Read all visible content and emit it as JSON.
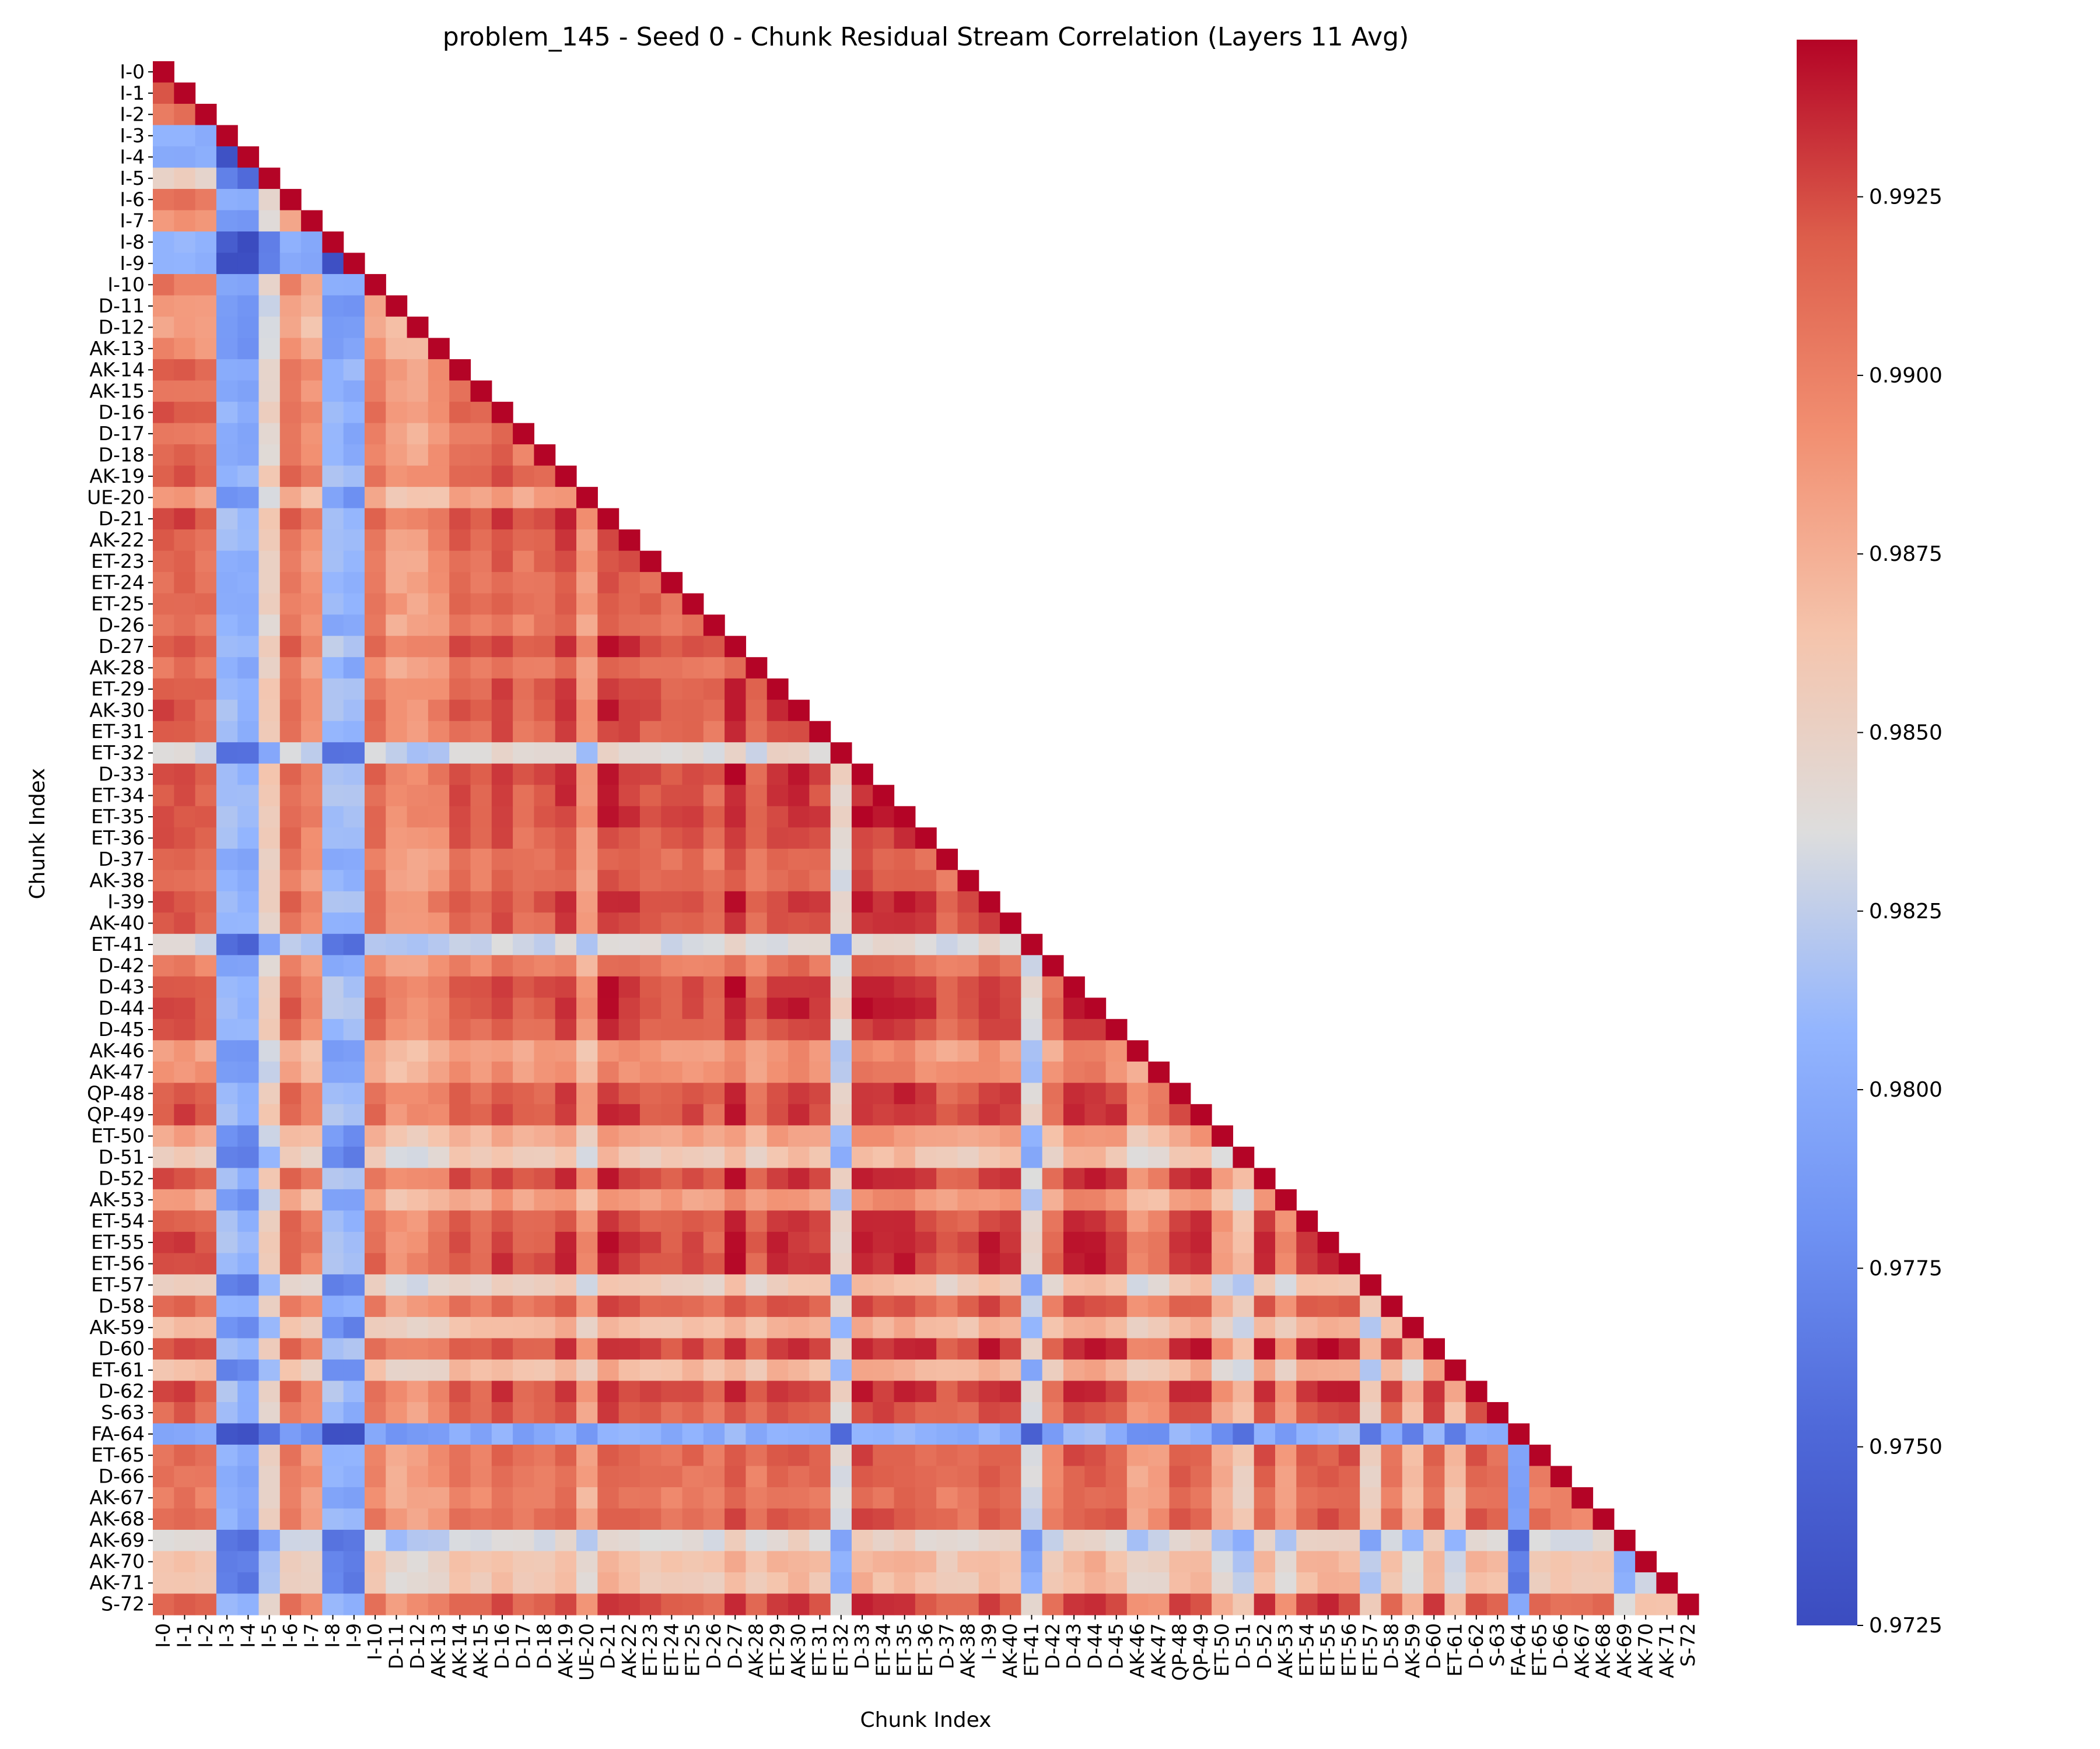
{
  "chart_data": {
    "type": "heatmap",
    "title": "problem_145 - Seed 0 - Chunk Residual Stream Correlation (Layers 11 Avg)",
    "xlabel": "Chunk Index",
    "ylabel": "Chunk Index",
    "labels": [
      "I-0",
      "I-1",
      "I-2",
      "I-3",
      "I-4",
      "I-5",
      "I-6",
      "I-7",
      "I-8",
      "I-9",
      "I-10",
      "D-11",
      "D-12",
      "AK-13",
      "AK-14",
      "AK-15",
      "D-16",
      "D-17",
      "D-18",
      "AK-19",
      "UE-20",
      "D-21",
      "AK-22",
      "ET-23",
      "ET-24",
      "ET-25",
      "D-26",
      "D-27",
      "AK-28",
      "ET-29",
      "AK-30",
      "ET-31",
      "ET-32",
      "D-33",
      "ET-34",
      "ET-35",
      "ET-36",
      "D-37",
      "AK-38",
      "I-39",
      "AK-40",
      "ET-41",
      "D-42",
      "D-43",
      "D-44",
      "D-45",
      "AK-46",
      "AK-47",
      "QP-48",
      "QP-49",
      "ET-50",
      "D-51",
      "D-52",
      "AK-53",
      "ET-54",
      "ET-55",
      "ET-56",
      "ET-57",
      "D-58",
      "AK-59",
      "D-60",
      "ET-61",
      "D-62",
      "S-63",
      "FA-64",
      "ET-65",
      "D-66",
      "AK-67",
      "AK-68",
      "AK-69",
      "AK-70",
      "AK-71",
      "S-72"
    ],
    "mask": "lower-triangle",
    "colormap": "coolwarm",
    "vmin": 0.9725,
    "vmax": 0.9947,
    "colorbar_ticks": [
      "0.9725",
      "0.9750",
      "0.9775",
      "0.9800",
      "0.9825",
      "0.9850",
      "0.9875",
      "0.9900",
      "0.9925"
    ],
    "row_profile": [
      0.9915,
      0.9918,
      0.9905,
      0.9735,
      0.9725,
      0.9805,
      0.99,
      0.9875,
      0.9738,
      0.9733,
      0.9897,
      0.9862,
      0.9862,
      0.9878,
      0.9915,
      0.99,
      0.9925,
      0.99,
      0.9908,
      0.9928,
      0.9862,
      0.994,
      0.9925,
      0.9915,
      0.991,
      0.9915,
      0.99,
      0.9943,
      0.99,
      0.9928,
      0.9935,
      0.992,
      0.979,
      0.9943,
      0.9935,
      0.9938,
      0.9925,
      0.9905,
      0.991,
      0.9935,
      0.9925,
      0.978,
      0.9895,
      0.994,
      0.994,
      0.9925,
      0.9865,
      0.9875,
      0.993,
      0.9935,
      0.9855,
      0.982,
      0.9935,
      0.9865,
      0.9928,
      0.994,
      0.994,
      0.9815,
      0.9915,
      0.9835,
      0.994,
      0.9835,
      0.9935,
      0.9915,
      0.9725,
      0.991,
      0.9905,
      0.9895,
      0.991,
      0.979,
      0.983,
      0.9825,
      0.9925
    ]
  },
  "colors": {
    "cmap_low": "#3b4cc0",
    "cmap_mid": "#dddddd",
    "cmap_high": "#b40426"
  }
}
